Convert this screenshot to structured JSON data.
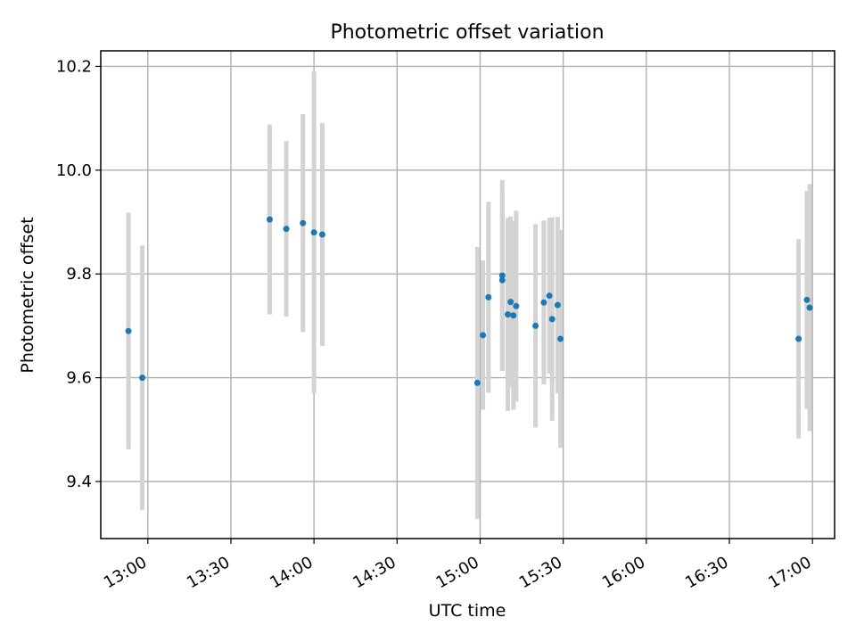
{
  "chart_data": {
    "type": "scatter",
    "title": "Photometric offset variation",
    "xlabel": "UTC time",
    "ylabel": "Photometric offset",
    "x_ticks": [
      "13:00",
      "13:30",
      "14:00",
      "14:30",
      "15:00",
      "15:30",
      "16:00",
      "16:30",
      "17:00"
    ],
    "y_ticks": [
      9.4,
      9.6,
      9.8,
      10.0,
      10.2
    ],
    "xlim": [
      "12:43",
      "17:08"
    ],
    "ylim": [
      9.29,
      10.23
    ],
    "grid": true,
    "colors": {
      "points": "#1f77b4",
      "error_bars": "#d3d3d3"
    },
    "points": [
      {
        "x": "12:53",
        "y": 9.69,
        "err": 0.228
      },
      {
        "x": "12:58",
        "y": 9.6,
        "err": 0.255
      },
      {
        "x": "13:44",
        "y": 9.905,
        "err": 0.183
      },
      {
        "x": "13:50",
        "y": 9.887,
        "err": 0.169
      },
      {
        "x": "13:56",
        "y": 9.898,
        "err": 0.21
      },
      {
        "x": "14:00",
        "y": 9.88,
        "err": 0.31
      },
      {
        "x": "14:03",
        "y": 9.876,
        "err": 0.215
      },
      {
        "x": "14:59",
        "y": 9.59,
        "err": 0.262
      },
      {
        "x": "15:01",
        "y": 9.682,
        "err": 0.144
      },
      {
        "x": "15:03",
        "y": 9.755,
        "err": 0.184
      },
      {
        "x": "15:08",
        "y": 9.797,
        "err": 0.184
      },
      {
        "x": "15:08",
        "y": 9.788,
        "err": 0.17
      },
      {
        "x": "15:10",
        "y": 9.722,
        "err": 0.186
      },
      {
        "x": "15:11",
        "y": 9.746,
        "err": 0.165
      },
      {
        "x": "15:12",
        "y": 9.72,
        "err": 0.182
      },
      {
        "x": "15:13",
        "y": 9.738,
        "err": 0.184
      },
      {
        "x": "15:20",
        "y": 9.7,
        "err": 0.196
      },
      {
        "x": "15:23",
        "y": 9.745,
        "err": 0.158
      },
      {
        "x": "15:25",
        "y": 9.758,
        "err": 0.15
      },
      {
        "x": "15:26",
        "y": 9.713,
        "err": 0.196
      },
      {
        "x": "15:28",
        "y": 9.74,
        "err": 0.17
      },
      {
        "x": "15:29",
        "y": 9.675,
        "err": 0.21
      },
      {
        "x": "16:55",
        "y": 9.675,
        "err": 0.192
      },
      {
        "x": "16:58",
        "y": 9.75,
        "err": 0.21
      },
      {
        "x": "16:59",
        "y": 9.735,
        "err": 0.238
      }
    ]
  }
}
